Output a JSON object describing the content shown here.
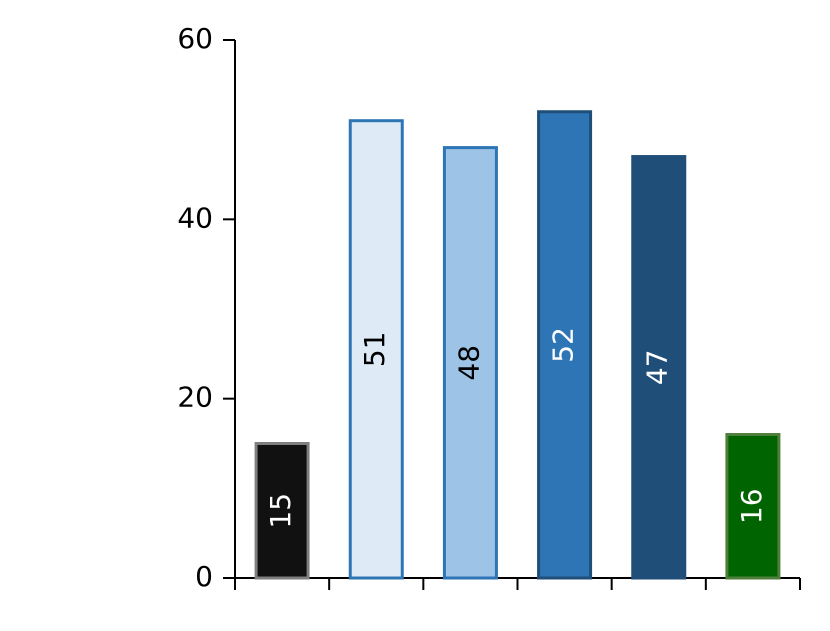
{
  "chart_data": {
    "type": "bar",
    "categories": [
      null,
      null,
      null,
      null,
      null,
      null
    ],
    "values": [
      15,
      51,
      48,
      52,
      47,
      16
    ],
    "colors": [
      "#111111",
      "#deebf7",
      "#9dc3e6",
      "#2e75b6",
      "#1f4e79",
      "#006400"
    ],
    "edge_colors": [
      "#7f7f7f",
      "#2e75b6",
      "#2e75b6",
      "#1f4e79",
      "#1f4e79",
      "#4e7f3a"
    ],
    "label_colors": [
      "#ffffff",
      "#000000",
      "#000000",
      "#ffffff",
      "#ffffff",
      "#ffffff"
    ],
    "ylim": [
      0,
      60
    ],
    "yticks": [
      0,
      20,
      40,
      60
    ],
    "grid": false
  }
}
